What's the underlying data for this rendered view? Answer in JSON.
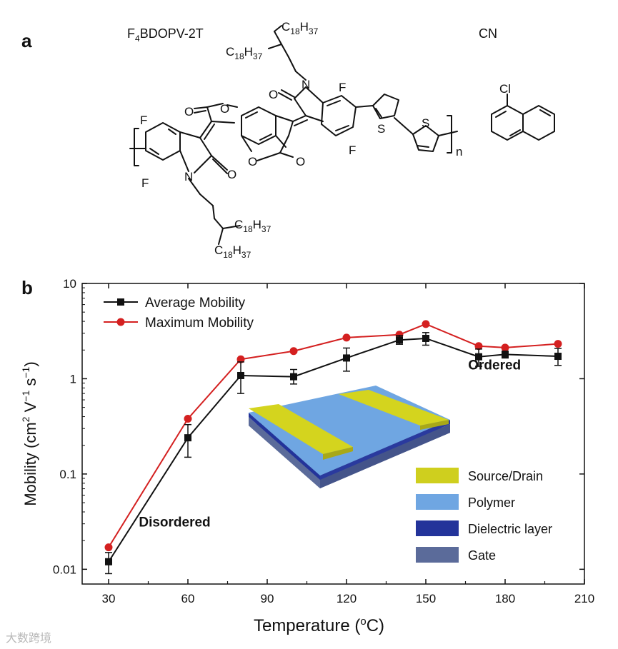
{
  "panel_a": {
    "label": "a",
    "polymer_name": "F4BDOPV-2T",
    "solvent_name": "CN",
    "atoms": {
      "F": "F",
      "N": "N",
      "O": "O",
      "S": "S",
      "Cl": "Cl",
      "n": "n"
    },
    "alkyl_c": "C",
    "alkyl_c_sub": "18",
    "alkyl_h": "H",
    "alkyl_h_sub": "37"
  },
  "panel_b": {
    "label": "b"
  },
  "chart_data": {
    "type": "line",
    "title": "",
    "xlabel": "Temperature (",
    "xlabel_sup": "o",
    "xlabel_end": "C)",
    "ylabel": "Mobility (cm",
    "ylabel_sup1": "2",
    "ylabel_mid": " V",
    "ylabel_sup2": "−1",
    "ylabel_mid2": " s",
    "ylabel_sup3": "−1",
    "ylabel_end": ")",
    "yscale": "log",
    "xlim": [
      20,
      210
    ],
    "ylim": [
      0.007,
      10
    ],
    "xticks": [
      30,
      60,
      90,
      120,
      150,
      180,
      210
    ],
    "yticks": [
      {
        "value": 0.01,
        "label": "0.01"
      },
      {
        "value": 0.1,
        "label": "0.1"
      },
      {
        "value": 1,
        "label": "1"
      },
      {
        "value": 10,
        "label": "10"
      }
    ],
    "legend_position": "top-left",
    "series": [
      {
        "name": "Average Mobility",
        "color": "#111111",
        "marker": "square",
        "x": [
          30,
          60,
          80,
          100,
          120,
          140,
          150,
          170,
          180,
          200
        ],
        "y": [
          0.012,
          0.24,
          1.08,
          1.05,
          1.65,
          2.55,
          2.65,
          1.7,
          1.8,
          1.72
        ],
        "err_low": [
          0.009,
          0.15,
          0.7,
          0.88,
          1.2,
          2.3,
          2.25,
          1.35,
          1.65,
          1.38
        ],
        "err_high": [
          0.015,
          0.33,
          1.5,
          1.25,
          2.1,
          2.85,
          3.05,
          2.05,
          1.95,
          2.08
        ]
      },
      {
        "name": "Maximum Mobility",
        "color": "#d42020",
        "marker": "circle",
        "x": [
          30,
          60,
          80,
          100,
          120,
          140,
          150,
          170,
          180,
          200
        ],
        "y": [
          0.017,
          0.38,
          1.6,
          1.95,
          2.7,
          2.9,
          3.75,
          2.2,
          2.12,
          2.32
        ]
      }
    ],
    "annotations": [
      {
        "text": "Ordered",
        "x": 176,
        "y": 1.25
      },
      {
        "text": "Disordered",
        "x": 55,
        "y": 0.028
      }
    ],
    "inset_legend": [
      {
        "label": "Source/Drain",
        "color": "#cfcf1e"
      },
      {
        "label": "Polymer",
        "color": "#6fa6e2"
      },
      {
        "label": "Dielectric layer",
        "color": "#23339a"
      },
      {
        "label": "Gate",
        "color": "#5b6b9a"
      }
    ]
  },
  "watermark": "大数跨境"
}
